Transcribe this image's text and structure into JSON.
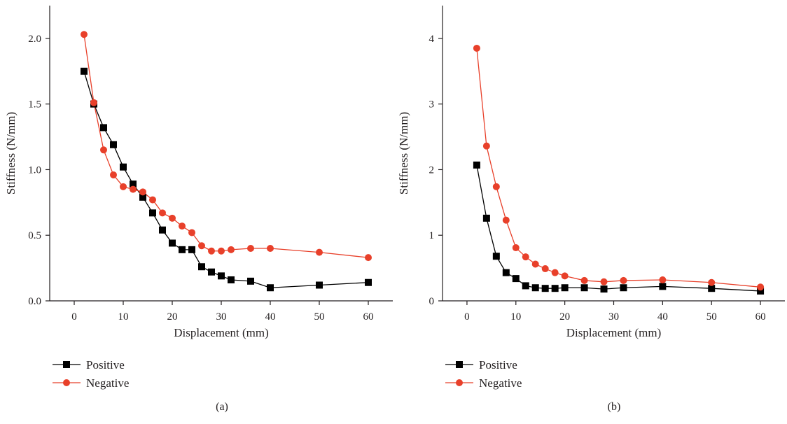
{
  "chart_data": [
    {
      "type": "line",
      "panel_label": "(a)",
      "xlabel": "Displacement (mm)",
      "ylabel": "Stiffness (N/mm)",
      "xlim": [
        -5,
        65
      ],
      "ylim": [
        0,
        2.25
      ],
      "xticks": [
        0,
        10,
        20,
        30,
        40,
        50,
        60
      ],
      "yticks": [
        0.0,
        0.5,
        1.0,
        1.5,
        2.0
      ],
      "ytick_labels": [
        "0.0",
        "0.5",
        "1.0",
        "1.5",
        "2.0"
      ],
      "grid": false,
      "legend_position": "bottom-left, below plot",
      "series": [
        {
          "name": "Positive",
          "marker": "square",
          "color": "#000000",
          "x": [
            2,
            4,
            6,
            8,
            10,
            12,
            14,
            16,
            18,
            20,
            22,
            24,
            26,
            28,
            30,
            32,
            36,
            40,
            50,
            60
          ],
          "y": [
            1.75,
            1.5,
            1.32,
            1.19,
            1.02,
            0.89,
            0.79,
            0.67,
            0.54,
            0.44,
            0.39,
            0.39,
            0.26,
            0.22,
            0.19,
            0.16,
            0.15,
            0.1,
            0.12,
            0.14
          ]
        },
        {
          "name": "Negative",
          "marker": "circle",
          "color": "#e8402a",
          "x": [
            2,
            4,
            6,
            8,
            10,
            12,
            14,
            16,
            18,
            20,
            22,
            24,
            26,
            28,
            30,
            32,
            36,
            40,
            50,
            60
          ],
          "y": [
            2.03,
            1.51,
            1.15,
            0.96,
            0.87,
            0.85,
            0.83,
            0.77,
            0.67,
            0.63,
            0.57,
            0.52,
            0.42,
            0.38,
            0.38,
            0.39,
            0.4,
            0.4,
            0.37,
            0.33
          ]
        }
      ]
    },
    {
      "type": "line",
      "panel_label": "(b)",
      "xlabel": "Displacement (mm)",
      "ylabel": "Stiffness (N/mm)",
      "xlim": [
        -5,
        65
      ],
      "ylim": [
        0,
        4.5
      ],
      "xticks": [
        0,
        10,
        20,
        30,
        40,
        50,
        60
      ],
      "yticks": [
        0,
        1,
        2,
        3,
        4
      ],
      "ytick_labels": [
        "0",
        "1",
        "2",
        "3",
        "4"
      ],
      "grid": false,
      "legend_position": "bottom-left, below plot",
      "series": [
        {
          "name": "Positive",
          "marker": "square",
          "color": "#000000",
          "x": [
            2,
            4,
            6,
            8,
            10,
            12,
            14,
            16,
            18,
            20,
            24,
            28,
            32,
            40,
            50,
            60
          ],
          "y": [
            2.07,
            1.26,
            0.68,
            0.43,
            0.34,
            0.23,
            0.2,
            0.19,
            0.19,
            0.2,
            0.2,
            0.18,
            0.2,
            0.22,
            0.19,
            0.15
          ]
        },
        {
          "name": "Negative",
          "marker": "circle",
          "color": "#e8402a",
          "x": [
            2,
            4,
            6,
            8,
            10,
            12,
            14,
            16,
            18,
            20,
            24,
            28,
            32,
            40,
            50,
            60
          ],
          "y": [
            3.85,
            2.36,
            1.74,
            1.23,
            0.81,
            0.67,
            0.56,
            0.49,
            0.43,
            0.38,
            0.31,
            0.29,
            0.31,
            0.32,
            0.28,
            0.21
          ]
        }
      ]
    }
  ]
}
